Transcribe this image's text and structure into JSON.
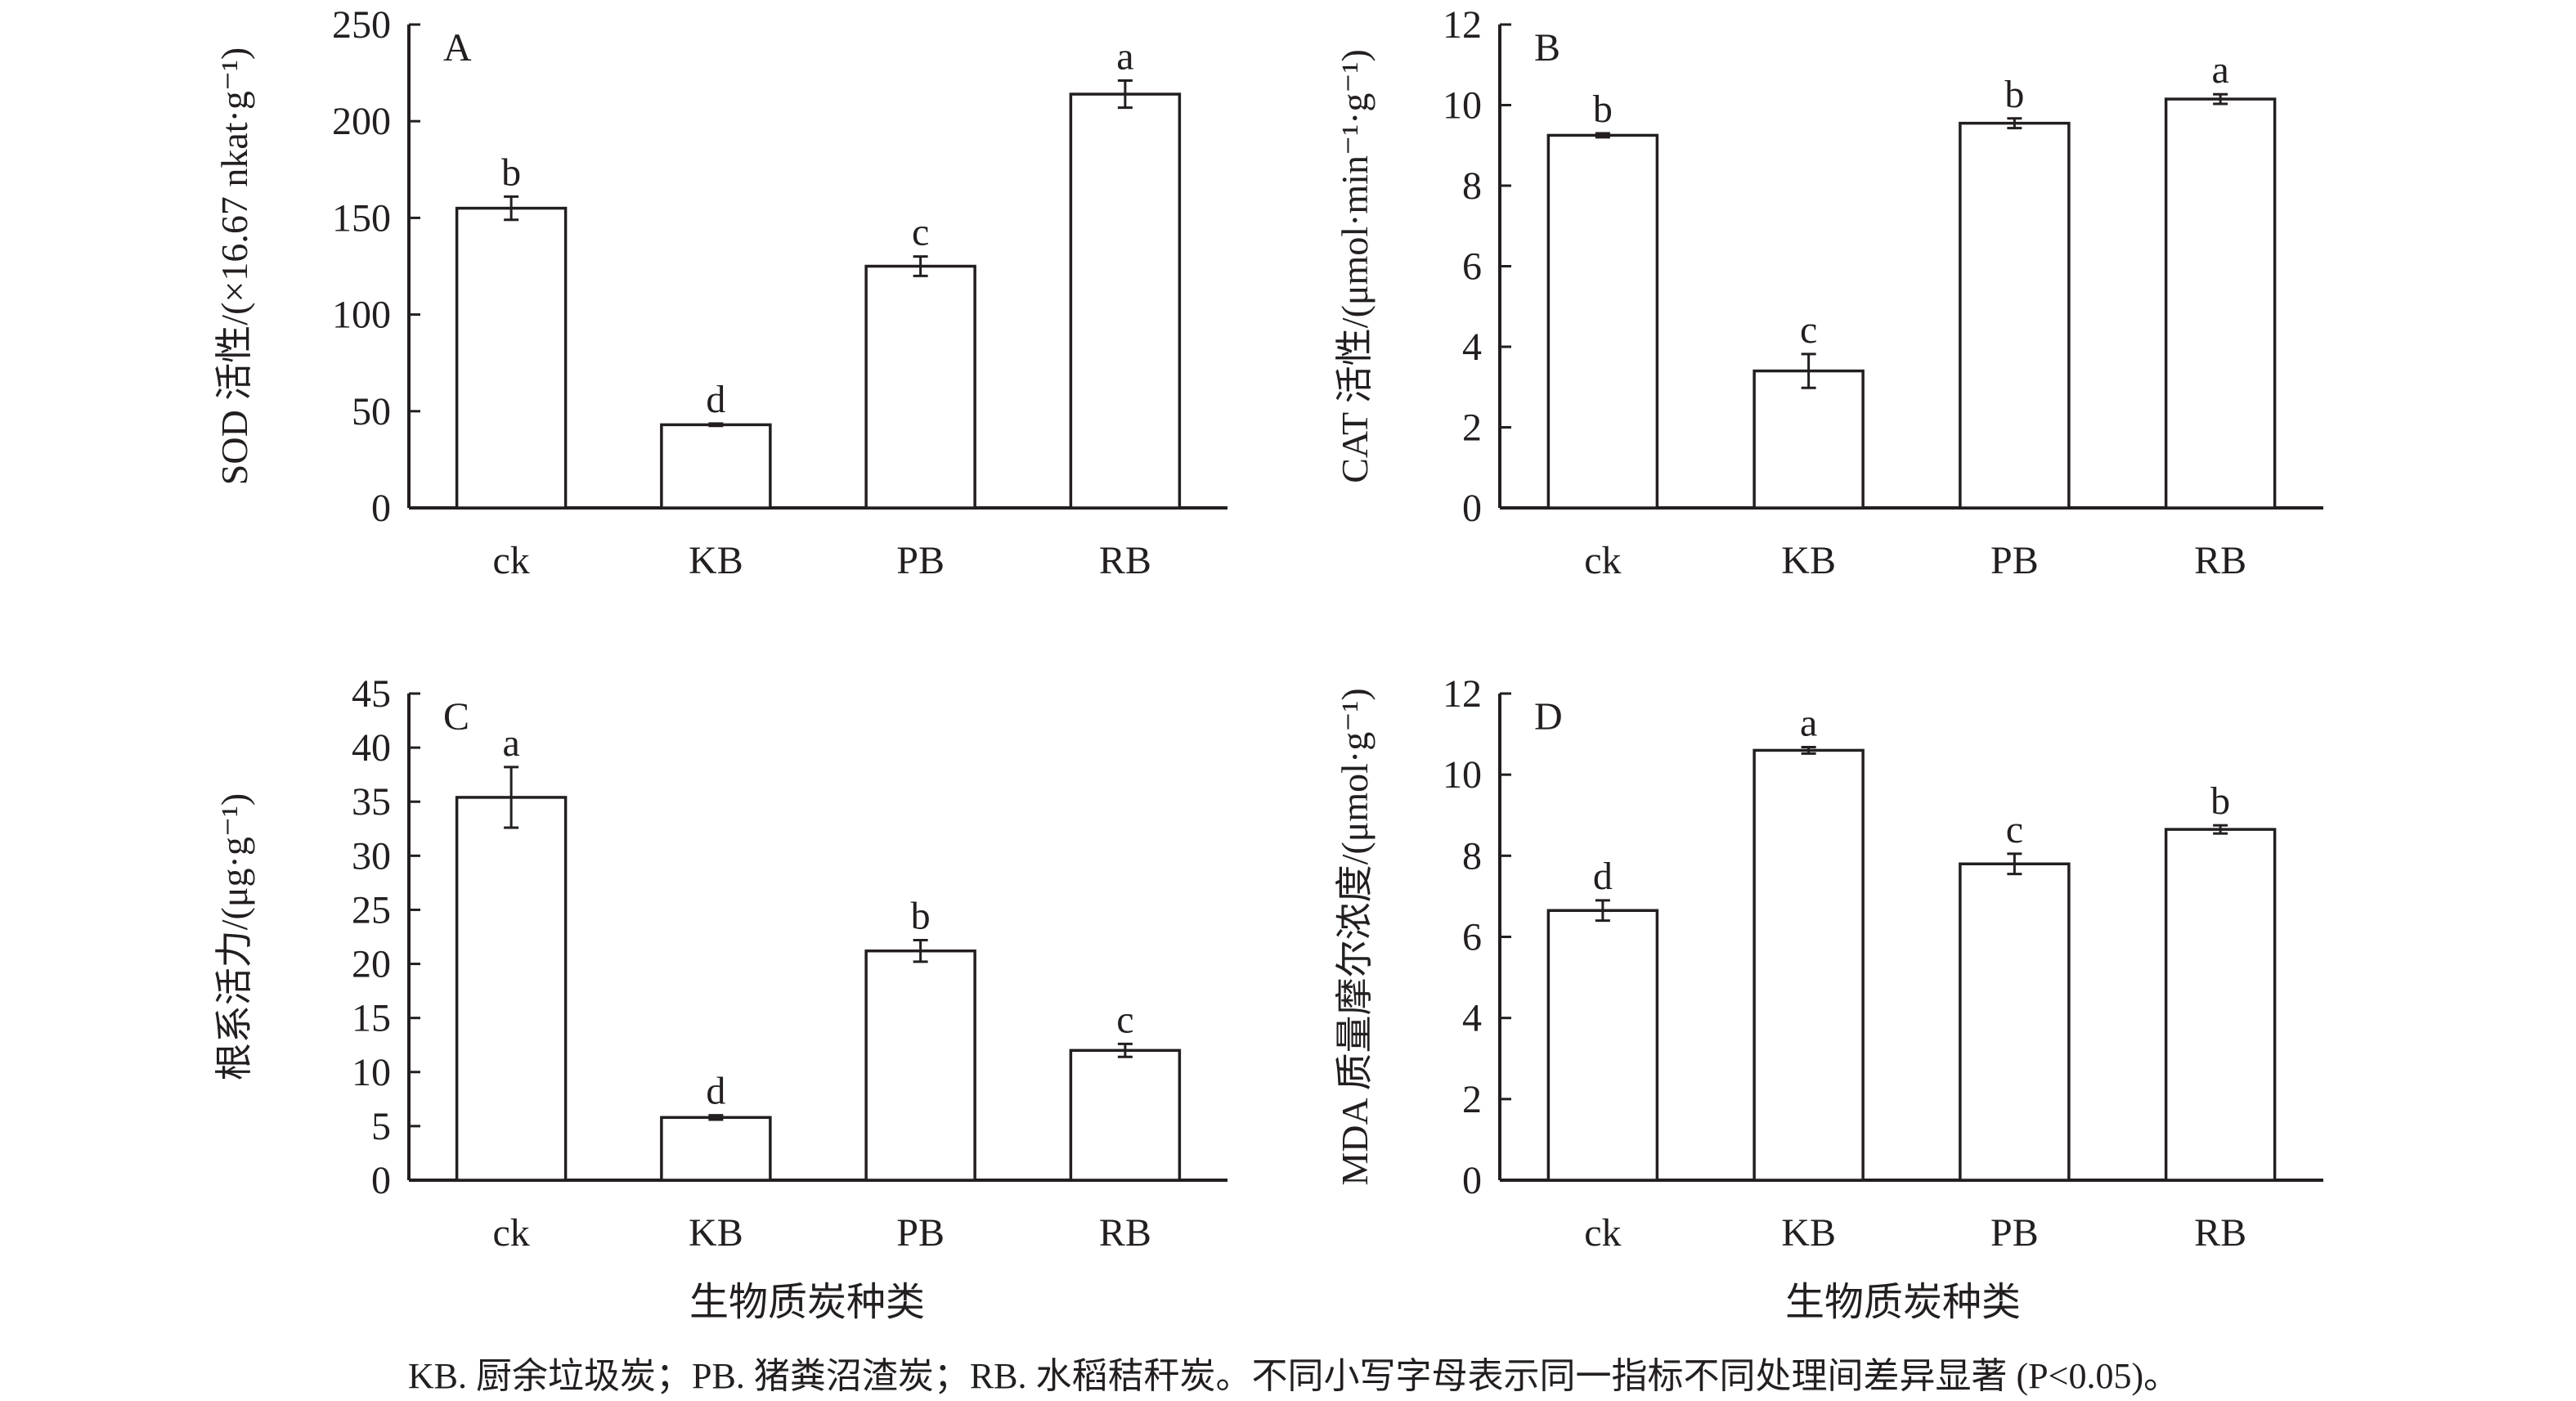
{
  "chart_data": [
    {
      "type": "bar",
      "panel": "A",
      "ylabel": "SOD 活性/(×16.67 nkat·g⁻¹)",
      "categories": [
        "ck",
        "KB",
        "PB",
        "RB"
      ],
      "values": [
        155,
        43,
        125,
        214
      ],
      "errors": [
        6,
        0.6,
        5,
        7
      ],
      "significance": [
        "b",
        "d",
        "c",
        "a"
      ],
      "ylim": [
        0,
        250
      ],
      "yticks": [
        0,
        50,
        100,
        150,
        200,
        250
      ],
      "xlabel": ""
    },
    {
      "type": "bar",
      "panel": "B",
      "ylabel": "CAT 活性/(μmol·min⁻¹·g⁻¹)",
      "categories": [
        "ck",
        "KB",
        "PB",
        "RB"
      ],
      "values": [
        9.25,
        3.4,
        9.55,
        10.15
      ],
      "errors": [
        0.05,
        0.42,
        0.12,
        0.12
      ],
      "significance": [
        "b",
        "c",
        "b",
        "a"
      ],
      "ylim": [
        0,
        12
      ],
      "yticks": [
        0,
        2,
        4,
        6,
        8,
        10,
        12
      ],
      "xlabel": ""
    },
    {
      "type": "bar",
      "panel": "C",
      "ylabel": "根系活力/(μg·g⁻¹)",
      "categories": [
        "ck",
        "KB",
        "PB",
        "RB"
      ],
      "values": [
        35.4,
        5.8,
        21.2,
        12.0
      ],
      "errors": [
        2.8,
        0.2,
        1.0,
        0.6
      ],
      "significance": [
        "a",
        "d",
        "b",
        "c"
      ],
      "ylim": [
        0,
        45
      ],
      "yticks": [
        0,
        5,
        10,
        15,
        20,
        25,
        30,
        35,
        40,
        45
      ],
      "xlabel": "生物质炭种类"
    },
    {
      "type": "bar",
      "panel": "D",
      "ylabel": "MDA 质量摩尔浓度/(μmol·g⁻¹)",
      "categories": [
        "ck",
        "KB",
        "PB",
        "RB"
      ],
      "values": [
        6.65,
        10.6,
        7.8,
        8.65
      ],
      "errors": [
        0.25,
        0.08,
        0.25,
        0.1
      ],
      "significance": [
        "d",
        "a",
        "c",
        "b"
      ],
      "ylim": [
        0,
        12
      ],
      "yticks": [
        0,
        2,
        4,
        6,
        8,
        10,
        12
      ],
      "xlabel": "生物质炭种类"
    }
  ],
  "caption": "KB. 厨余垃圾炭；PB. 猪粪沼渣炭；RB. 水稻秸秆炭。不同小写字母表示同一指标不同处理间差异显著 (P<0.05)。"
}
